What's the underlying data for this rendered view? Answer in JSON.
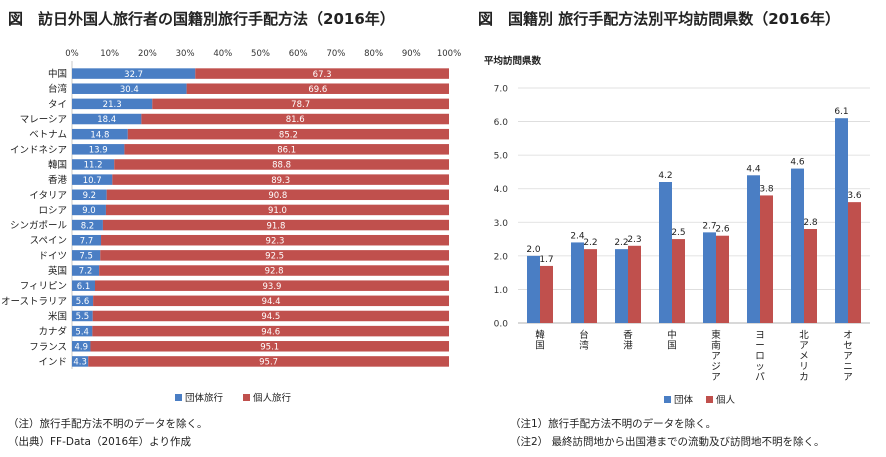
{
  "left_title": "図　訪日外国人旅行者の国籍別旅行手配方法（2016年）",
  "right_title": "図　国籍別 旅行手配方法別平均訪問県数（2016年）",
  "left_notes": [
    "（注）旅行手配方法不明のデータを除く。",
    "（出典）FF-Data（2016年）より作成"
  ],
  "right_notes": [
    "（注1）旅行手配方法不明のデータを除く。",
    "（注2） 最終訪問地から出国港までの流動及び訪問地不明を除く。"
  ],
  "colors": {
    "group": "#4A7EC4",
    "individual": "#C0504D"
  },
  "chart_data": [
    {
      "type": "bar",
      "orientation": "horizontal",
      "stacked": true,
      "title": "図　訪日外国人旅行者の国籍別旅行手配方法（2016年）",
      "xlim": [
        0,
        100
      ],
      "x_ticks": [
        "0%",
        "10%",
        "20%",
        "30%",
        "40%",
        "50%",
        "60%",
        "70%",
        "80%",
        "90%",
        "100%"
      ],
      "categories": [
        "中国",
        "台湾",
        "タイ",
        "マレーシア",
        "ベトナム",
        "インドネシア",
        "韓国",
        "香港",
        "イタリア",
        "ロシア",
        "シンガポール",
        "スペイン",
        "ドイツ",
        "英国",
        "フィリピン",
        "オーストラリア",
        "米国",
        "カナダ",
        "フランス",
        "インド"
      ],
      "series": [
        {
          "name": "団体旅行",
          "values": [
            32.7,
            30.4,
            21.3,
            18.4,
            14.8,
            13.9,
            11.2,
            10.7,
            9.2,
            9.0,
            8.2,
            7.7,
            7.5,
            7.2,
            6.1,
            5.6,
            5.5,
            5.4,
            4.9,
            4.3
          ],
          "labels": [
            "32.7",
            "30.4",
            "21.3",
            "18.4",
            "14.8",
            "13.9",
            "11.2",
            "10.7",
            "9.2",
            "9.0",
            "8.2",
            "7.7",
            "7.5",
            "7.2",
            "6.1",
            "5.6",
            "5.5",
            "5.4",
            "4.9",
            "4.3"
          ]
        },
        {
          "name": "個人旅行",
          "values": [
            67.3,
            69.6,
            78.7,
            81.6,
            85.2,
            86.1,
            88.8,
            89.3,
            90.8,
            91.0,
            91.8,
            92.3,
            92.5,
            92.8,
            93.9,
            94.4,
            94.5,
            94.6,
            95.1,
            95.7
          ],
          "labels": [
            "67.3",
            "69.6",
            "78.7",
            "81.6",
            "85.2",
            "86.1",
            "88.8",
            "89.3",
            "90.8",
            "91.0",
            "91.8",
            "92.3",
            "92.5",
            "92.8",
            "93.9",
            "94.4",
            "94.5",
            "94.6",
            "95.1",
            "95.7"
          ]
        }
      ],
      "legend_placement": "bottom"
    },
    {
      "type": "bar",
      "title": "図　国籍別 旅行手配方法別平均訪問県数（2016年）",
      "ylabel": "平均訪問県数",
      "ylim": [
        0,
        7
      ],
      "y_ticks": [
        "0.0",
        "1.0",
        "2.0",
        "3.0",
        "4.0",
        "5.0",
        "6.0",
        "7.0"
      ],
      "categories": [
        "韓国",
        "台湾",
        "香港",
        "中国",
        "東南アジア",
        "ヨーロッパ",
        "北アメリカ",
        "オセアニア"
      ],
      "series": [
        {
          "name": "団体",
          "values": [
            2.0,
            2.4,
            2.2,
            4.2,
            2.7,
            4.4,
            4.6,
            6.1
          ],
          "labels": [
            "2.0",
            "2.4",
            "2.2",
            "4.2",
            "2.7",
            "4.4",
            "4.6",
            "6.1"
          ]
        },
        {
          "name": "個人",
          "values": [
            1.7,
            2.2,
            2.3,
            2.5,
            2.6,
            3.8,
            2.8,
            3.6
          ],
          "labels": [
            "1.7",
            "2.2",
            "2.3",
            "2.5",
            "2.6",
            "3.8",
            "2.8",
            "3.6"
          ]
        }
      ],
      "grid": true,
      "legend_placement": "bottom"
    }
  ]
}
